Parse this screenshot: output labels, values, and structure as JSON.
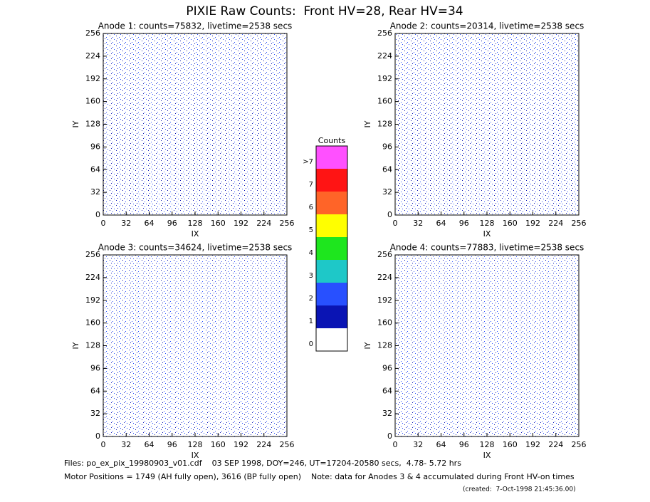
{
  "title": "PIXIE Raw Counts:  Front HV=28, Rear HV=34",
  "chart_data": [
    {
      "type": "heatmap",
      "title": "Anode 1: counts=75832, livetime=2538 secs",
      "xlabel": "IX",
      "ylabel": "IY",
      "xlim": [
        0,
        256
      ],
      "ylim": [
        0,
        256
      ],
      "xticks": [
        0,
        32,
        64,
        96,
        128,
        160,
        192,
        224,
        256
      ],
      "yticks": [
        0,
        32,
        64,
        96,
        128,
        160,
        192,
        224,
        256
      ]
    },
    {
      "type": "heatmap",
      "title": "Anode 2: counts=20314, livetime=2538 secs",
      "xlabel": "IX",
      "ylabel": "IY",
      "xlim": [
        0,
        256
      ],
      "ylim": [
        0,
        256
      ],
      "xticks": [
        0,
        32,
        64,
        96,
        128,
        160,
        192,
        224,
        256
      ],
      "yticks": [
        0,
        32,
        64,
        96,
        128,
        160,
        192,
        224,
        256
      ]
    },
    {
      "type": "heatmap",
      "title": "Anode 3: counts=34624, livetime=2538 secs",
      "xlabel": "IX",
      "ylabel": "IY",
      "xlim": [
        0,
        256
      ],
      "ylim": [
        0,
        256
      ],
      "xticks": [
        0,
        32,
        64,
        96,
        128,
        160,
        192,
        224,
        256
      ],
      "yticks": [
        0,
        32,
        64,
        96,
        128,
        160,
        192,
        224,
        256
      ]
    },
    {
      "type": "heatmap",
      "title": "Anode 4: counts=77883, livetime=2538 secs",
      "xlabel": "IX",
      "ylabel": "IY",
      "xlim": [
        0,
        256
      ],
      "ylim": [
        0,
        256
      ],
      "xticks": [
        0,
        32,
        64,
        96,
        128,
        160,
        192,
        224,
        256
      ],
      "yticks": [
        0,
        32,
        64,
        96,
        128,
        160,
        192,
        224,
        256
      ]
    }
  ],
  "colorbar": {
    "title": "Counts",
    "labels": [
      "0",
      "1",
      "2",
      "3",
      "4",
      "5",
      "6",
      "7",
      ">7"
    ],
    "colors": [
      "#ffffff",
      "#0a14b4",
      "#2850ff",
      "#1ec8c8",
      "#1ee61e",
      "#ffff00",
      "#ff6428",
      "#ff1414",
      "#ff50ff"
    ]
  },
  "footer": [
    "Files: po_ex_pix_19980903_v01.cdf    03 SEP 1998, DOY=246, UT=17204-20580 secs,  4.78- 5.72 hrs",
    "Motor Positions = 1749 (AH fully open), 3616 (BP fully open)    Note: data for Anodes 3 & 4 accumulated during Front HV-on times",
    "(created:  7-Oct-1998 21:45:36.00)"
  ]
}
